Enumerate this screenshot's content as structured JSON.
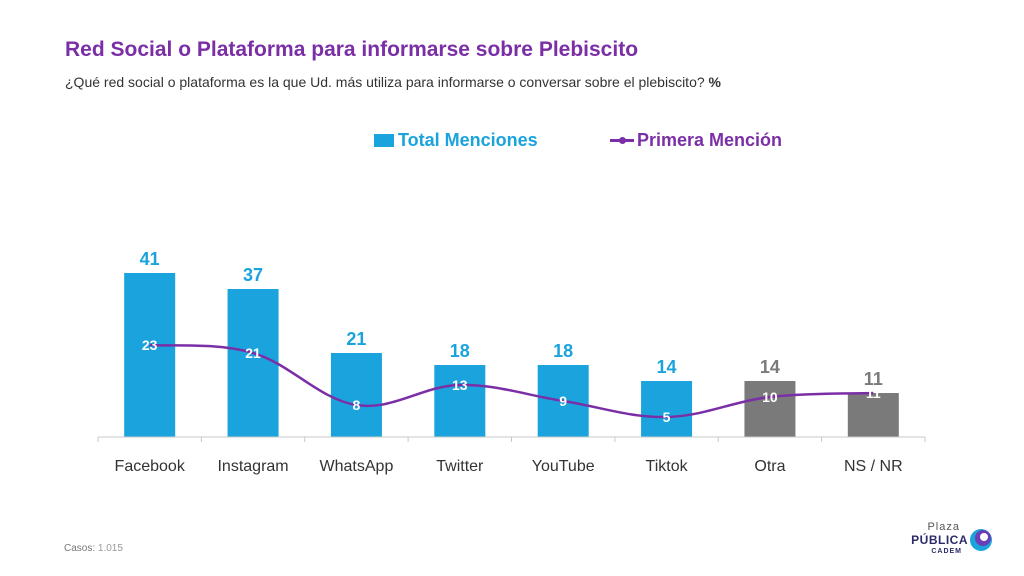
{
  "header": {
    "title": "Red Social o Plataforma para informarse sobre Plebiscito",
    "subtitle": "¿Qué red social o plataforma es la que Ud. más utiliza para informarse o conversar sobre el plebiscito?",
    "subtitle_unit": "%"
  },
  "colors": {
    "bar": "#1AA3DC",
    "bar_other": "#7A7A7A",
    "line": "#7B2FA6",
    "title": "#7B2FA6"
  },
  "chart_data": {
    "type": "bar",
    "categories": [
      "Facebook",
      "Instagram",
      "WhatsApp",
      "Twitter",
      "YouTube",
      "Tiktok",
      "Otra",
      "NS / NR"
    ],
    "series": [
      {
        "name": "Total Menciones",
        "type": "bar",
        "values": [
          41,
          37,
          21,
          18,
          18,
          14,
          14,
          11
        ]
      },
      {
        "name": "Primera Mención",
        "type": "line",
        "values": [
          23,
          21,
          8,
          13,
          9,
          5,
          10,
          11
        ]
      }
    ],
    "ylim": [
      0,
      41
    ],
    "legend": "top-center",
    "grid": false
  },
  "footer": {
    "casos_label": "Casos:",
    "casos_value": "1.015"
  },
  "logo": {
    "line1": "Plaza",
    "line2": "PÚBLICA",
    "line3": "CADEM"
  }
}
